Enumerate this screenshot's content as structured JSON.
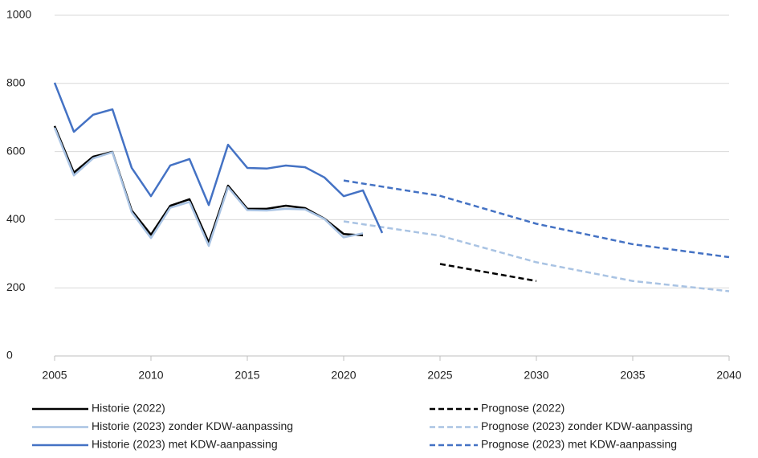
{
  "chart_data": {
    "type": "line",
    "xlim": [
      2005,
      2040
    ],
    "xticks": [
      2005,
      2010,
      2015,
      2020,
      2025,
      2030,
      2035,
      2040
    ],
    "ylim": [
      0,
      1000
    ],
    "yticks": [
      0,
      200,
      400,
      600,
      800,
      1000
    ],
    "grid": true,
    "legend": "bottom",
    "series": [
      {
        "name": "Historie (2022)",
        "color": "#000000",
        "dash": false,
        "x": [
          2005,
          2006,
          2007,
          2008,
          2009,
          2010,
          2011,
          2012,
          2013,
          2014,
          2015,
          2016,
          2017,
          2018,
          2019,
          2020,
          2021
        ],
        "values": [
          675,
          538,
          585,
          599,
          427,
          356,
          441,
          460,
          333,
          500,
          432,
          432,
          441,
          434,
          403,
          358,
          354
        ]
      },
      {
        "name": "Prognose (2022)",
        "color": "#000000",
        "dash": true,
        "x": [
          2025,
          2030
        ],
        "values": [
          270,
          220
        ]
      },
      {
        "name": "Historie (2023) zonder KDW-aanpassing",
        "color": "#a9c3e3",
        "dash": false,
        "x": [
          2005,
          2006,
          2007,
          2008,
          2009,
          2010,
          2011,
          2012,
          2013,
          2014,
          2015,
          2016,
          2017,
          2018,
          2019,
          2020,
          2021
        ],
        "values": [
          670,
          530,
          580,
          598,
          422,
          346,
          435,
          452,
          323,
          495,
          428,
          427,
          432,
          430,
          402,
          348,
          360
        ]
      },
      {
        "name": "Prognose (2023) zonder KDW-aanpassing",
        "color": "#a9c3e3",
        "dash": true,
        "x": [
          2020,
          2025,
          2030,
          2035,
          2040
        ],
        "values": [
          395,
          353,
          275,
          220,
          190
        ]
      },
      {
        "name": "Historie (2023) met KDW-aanpassing",
        "color": "#4472c4",
        "dash": false,
        "x": [
          2005,
          2006,
          2007,
          2008,
          2009,
          2010,
          2011,
          2012,
          2013,
          2014,
          2015,
          2016,
          2017,
          2018,
          2019,
          2020,
          2021,
          2022
        ],
        "values": [
          802,
          658,
          708,
          724,
          552,
          469,
          559,
          578,
          443,
          620,
          552,
          550,
          559,
          554,
          524,
          469,
          486,
          361
        ]
      },
      {
        "name": "Prognose (2023) met KDW-aanpassing",
        "color": "#4472c4",
        "dash": true,
        "x": [
          2020,
          2025,
          2030,
          2035,
          2040
        ],
        "values": [
          515,
          470,
          388,
          328,
          290
        ]
      }
    ]
  }
}
